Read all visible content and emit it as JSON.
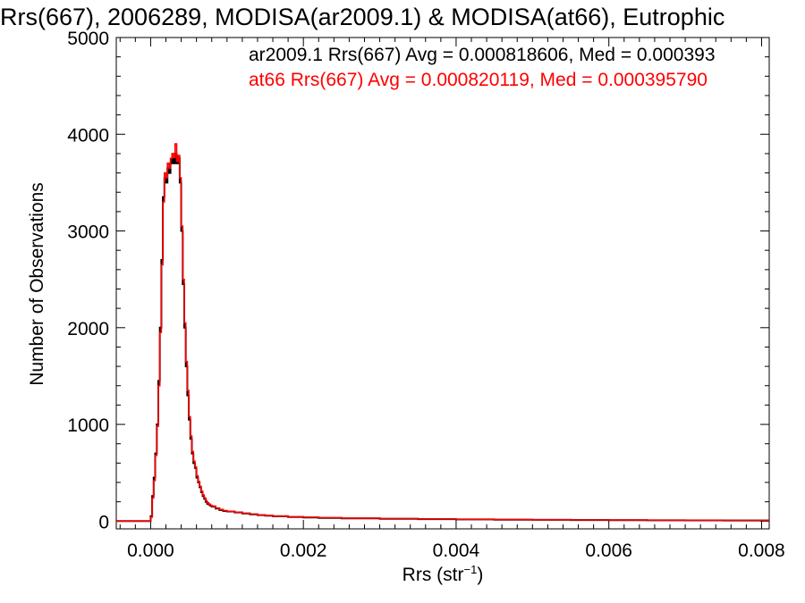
{
  "chart_data": {
    "type": "line",
    "title": "Rrs(667), 2006289, MODISA(ar2009.1) & MODISA(at66), Eutrophic",
    "xlabel_main": "Rrs (str",
    "xlabel_sup": "−1",
    "xlabel_close": ")",
    "ylabel": "Number of Observations",
    "xlim": [
      -0.00045,
      0.0081
    ],
    "ylim": [
      -80,
      5000
    ],
    "xticks": [
      0.0,
      0.002,
      0.004,
      0.006,
      0.008
    ],
    "xtick_labels": [
      "0.000",
      "0.002",
      "0.004",
      "0.006",
      "0.008"
    ],
    "yticks": [
      0,
      1000,
      2000,
      3000,
      4000,
      5000
    ],
    "ytick_labels": [
      "0",
      "1000",
      "2000",
      "3000",
      "4000",
      "5000"
    ],
    "legend_placement": "top-right",
    "series": [
      {
        "name": "ar2009.1 Rrs(667) Avg = 0.000818606, Med = 0.000393",
        "color": "#000000",
        "x": [
          -0.0005,
          -2e-05,
          0.0,
          2e-05,
          4e-05,
          6e-05,
          8e-05,
          0.0001,
          0.00012,
          0.00014,
          0.00016,
          0.00018,
          0.0002,
          0.00022,
          0.00024,
          0.00026,
          0.00028,
          0.0003,
          0.00032,
          0.00034,
          0.00036,
          0.00038,
          0.0004,
          0.00042,
          0.00044,
          0.00046,
          0.00048,
          0.0005,
          0.00052,
          0.00054,
          0.00056,
          0.00058,
          0.0006,
          0.00062,
          0.00064,
          0.00066,
          0.00068,
          0.0007,
          0.00072,
          0.00074,
          0.00076,
          0.00078,
          0.0008,
          0.00085,
          0.0009,
          0.00095,
          0.001,
          0.0011,
          0.0012,
          0.0013,
          0.0014,
          0.0015,
          0.0016,
          0.0018,
          0.002,
          0.0022,
          0.0025,
          0.003,
          0.0035,
          0.004,
          0.0045,
          0.005,
          0.0055,
          0.006,
          0.0065,
          0.007,
          0.0075,
          0.008
        ],
        "y": [
          0,
          0,
          50,
          260,
          450,
          700,
          1000,
          1450,
          2000,
          2700,
          3350,
          3550,
          3500,
          3650,
          3600,
          3700,
          3750,
          3700,
          3800,
          3700,
          3750,
          3500,
          3000,
          2450,
          2000,
          1600,
          1300,
          1050,
          850,
          700,
          600,
          550,
          450,
          400,
          350,
          300,
          260,
          230,
          200,
          180,
          170,
          160,
          150,
          130,
          115,
          105,
          100,
          90,
          80,
          70,
          62,
          56,
          50,
          42,
          38,
          33,
          28,
          24,
          21,
          18,
          15,
          13,
          11,
          10,
          9,
          8,
          7,
          7
        ]
      },
      {
        "name": "at66 Rrs(667) Avg = 0.000820119, Med = 0.000395790",
        "color": "#ff0000",
        "x": [
          -0.0005,
          -2e-05,
          0.0,
          2e-05,
          4e-05,
          6e-05,
          8e-05,
          0.0001,
          0.00012,
          0.00014,
          0.00016,
          0.00018,
          0.0002,
          0.00022,
          0.00024,
          0.00026,
          0.00028,
          0.0003,
          0.00032,
          0.00034,
          0.00036,
          0.00038,
          0.0004,
          0.00042,
          0.00044,
          0.00046,
          0.00048,
          0.0005,
          0.00052,
          0.00054,
          0.00056,
          0.00058,
          0.0006,
          0.00062,
          0.00064,
          0.00066,
          0.00068,
          0.0007,
          0.00072,
          0.00074,
          0.00076,
          0.00078,
          0.0008,
          0.00085,
          0.0009,
          0.00095,
          0.001,
          0.0011,
          0.0012,
          0.0013,
          0.0014,
          0.0015,
          0.0016,
          0.0018,
          0.002,
          0.0022,
          0.0025,
          0.003,
          0.0035,
          0.004,
          0.0045,
          0.005,
          0.0055,
          0.006,
          0.0065,
          0.007,
          0.0075,
          0.008
        ],
        "y": [
          0,
          0,
          40,
          240,
          420,
          680,
          980,
          1400,
          1950,
          2650,
          3300,
          3600,
          3550,
          3700,
          3650,
          3750,
          3800,
          3760,
          3900,
          3720,
          3780,
          3550,
          3050,
          2500,
          2050,
          1650,
          1350,
          1080,
          880,
          720,
          620,
          560,
          470,
          410,
          360,
          310,
          270,
          240,
          210,
          190,
          175,
          165,
          155,
          135,
          120,
          108,
          102,
          92,
          82,
          72,
          64,
          58,
          52,
          44,
          40,
          35,
          30,
          25,
          22,
          19,
          16,
          14,
          12,
          11,
          10,
          9,
          8,
          8
        ]
      }
    ]
  }
}
